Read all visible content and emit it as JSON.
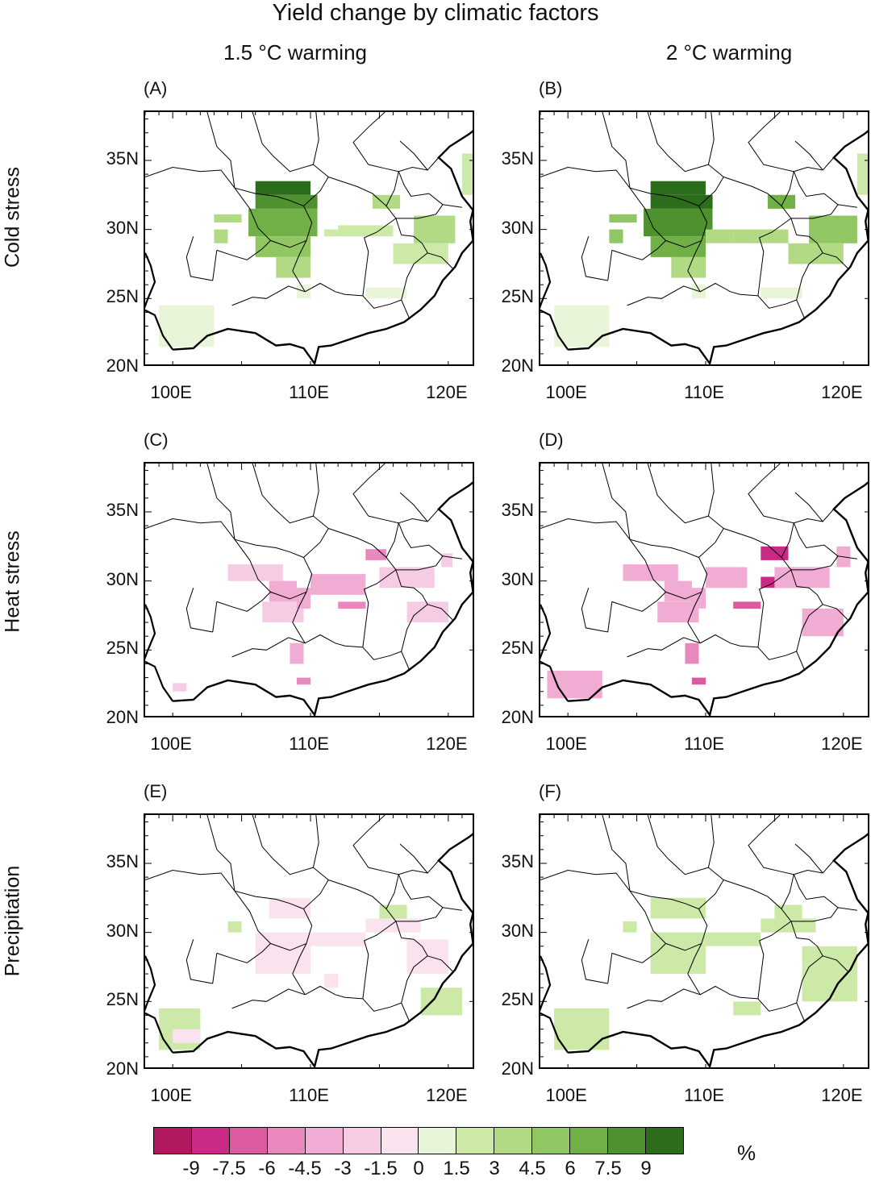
{
  "title": "Yield change by climatic factors",
  "columns": [
    "1.5 °C warming",
    "2 °C warming"
  ],
  "rows": [
    "Cold stress",
    "Heat stress",
    "Precipitation"
  ],
  "panel_labels": [
    "(A)",
    "(B)",
    "(C)",
    "(D)",
    "(E)",
    "(F)"
  ],
  "lat_ticks": [
    "35N",
    "30N",
    "25N",
    "20N"
  ],
  "lon_ticks": [
    "100E",
    "110E",
    "120E"
  ],
  "map_extent": {
    "lon": [
      98,
      122
    ],
    "lat": [
      20,
      38.5
    ]
  },
  "colors": {
    "bins": [
      "#b2185e",
      "#ca2a85",
      "#dc5a9f",
      "#e888bc",
      "#f0acd3",
      "#f6cce4",
      "#fae3ef",
      "#e9f5d8",
      "#cde9a8",
      "#b2da85",
      "#91c763",
      "#70b046",
      "#4d922f",
      "#2c6d1b"
    ],
    "border": "#000000"
  },
  "colorbar": {
    "labels": [
      "-9",
      "-7.5",
      "-6",
      "-4.5",
      "-3",
      "-1.5",
      "0",
      "1.5",
      "3",
      "4.5",
      "6",
      "7.5",
      "9"
    ],
    "unit": "%"
  },
  "regions": {
    "A": [
      [
        103,
        29,
        1,
        1,
        9
      ],
      [
        103,
        30.5,
        2,
        0.6,
        9
      ],
      [
        106,
        32.5,
        4,
        1,
        13
      ],
      [
        106,
        31.5,
        4.5,
        1,
        12
      ],
      [
        105.5,
        29.5,
        5,
        2,
        11
      ],
      [
        106,
        28,
        4,
        1.5,
        10
      ],
      [
        107.5,
        26.5,
        2.5,
        1.5,
        9
      ],
      [
        111,
        29.5,
        1,
        0.5,
        8
      ],
      [
        112,
        29.5,
        4,
        0.8,
        8
      ],
      [
        114.5,
        31.5,
        2,
        1,
        9
      ],
      [
        117.5,
        29,
        3,
        2,
        9
      ],
      [
        116,
        27.5,
        4,
        1.5,
        8
      ],
      [
        121,
        32.5,
        1,
        3,
        8
      ],
      [
        99,
        21.5,
        4,
        3,
        7
      ],
      [
        109,
        25,
        1,
        1,
        7
      ],
      [
        114,
        25,
        3,
        0.8,
        7
      ]
    ],
    "B": [
      [
        103,
        29,
        1,
        1,
        10
      ],
      [
        103,
        30.5,
        2,
        0.6,
        10
      ],
      [
        106,
        32.5,
        4,
        1,
        13
      ],
      [
        106,
        31.5,
        4.5,
        1,
        13
      ],
      [
        105.5,
        29.5,
        5,
        2,
        12
      ],
      [
        106,
        28,
        4,
        1.5,
        11
      ],
      [
        107.5,
        26.5,
        2.5,
        1.5,
        9
      ],
      [
        110,
        29,
        2,
        1,
        9
      ],
      [
        112,
        29,
        4,
        1,
        9
      ],
      [
        114.5,
        31.5,
        2,
        1,
        11
      ],
      [
        117.5,
        29,
        3.5,
        2,
        10
      ],
      [
        116,
        27.5,
        4,
        1.5,
        9
      ],
      [
        121,
        32.5,
        1,
        3,
        8
      ],
      [
        99,
        21.5,
        4,
        3,
        7
      ],
      [
        109,
        25,
        1,
        1,
        7
      ],
      [
        114,
        25,
        3,
        0.8,
        7
      ]
    ],
    "C": [
      [
        104,
        30,
        4,
        1.2,
        5
      ],
      [
        107,
        28.5,
        2,
        1.5,
        4
      ],
      [
        106.5,
        27,
        3,
        1.5,
        5
      ],
      [
        109,
        28,
        1,
        1.5,
        4
      ],
      [
        110,
        29,
        4,
        1.5,
        4
      ],
      [
        112,
        28,
        2,
        0.5,
        3
      ],
      [
        114,
        31.5,
        1.5,
        0.8,
        3
      ],
      [
        115,
        29.5,
        4,
        1.5,
        5
      ],
      [
        117,
        27,
        3,
        1.5,
        5
      ],
      [
        108.5,
        24,
        1,
        1.5,
        4
      ],
      [
        109,
        22.5,
        1,
        0.5,
        3
      ],
      [
        100,
        22,
        1,
        0.6,
        5
      ],
      [
        119.5,
        31,
        0.8,
        1,
        5
      ]
    ],
    "D": [
      [
        104,
        30,
        4,
        1.2,
        4
      ],
      [
        107,
        28.5,
        2,
        1.5,
        4
      ],
      [
        106.5,
        27,
        3,
        1.5,
        4
      ],
      [
        109,
        28,
        1,
        1.5,
        4
      ],
      [
        110,
        29.5,
        3,
        1.5,
        4
      ],
      [
        112,
        28,
        2,
        0.5,
        2
      ],
      [
        114,
        31.5,
        2,
        1,
        1
      ],
      [
        114,
        29.5,
        3,
        0.8,
        1
      ],
      [
        115,
        29.5,
        4,
        1.5,
        4
      ],
      [
        117,
        26,
        3,
        2,
        4
      ],
      [
        108.5,
        24,
        1,
        1.5,
        3
      ],
      [
        109,
        22.5,
        1,
        0.5,
        2
      ],
      [
        98.5,
        21.5,
        4,
        2,
        4
      ],
      [
        119.5,
        31,
        1,
        1.5,
        4
      ]
    ],
    "E": [
      [
        104,
        30,
        1,
        0.8,
        8
      ],
      [
        107,
        31,
        3,
        1.5,
        6
      ],
      [
        106,
        27,
        4,
        3,
        6
      ],
      [
        110,
        29,
        4,
        1,
        6
      ],
      [
        114,
        30,
        4,
        1,
        6
      ],
      [
        117,
        27,
        3,
        2.5,
        6
      ],
      [
        115,
        31,
        2,
        1,
        8
      ],
      [
        99,
        21.5,
        3,
        3,
        8
      ],
      [
        100,
        22,
        2,
        1,
        6
      ],
      [
        118,
        24,
        3,
        2,
        8
      ],
      [
        111,
        26,
        1,
        1,
        6
      ]
    ],
    "F": [
      [
        104,
        30,
        1,
        0.8,
        8
      ],
      [
        106,
        31,
        4,
        1.5,
        8
      ],
      [
        106,
        27,
        4,
        3,
        8
      ],
      [
        110,
        29,
        4,
        1,
        8
      ],
      [
        114,
        30,
        4,
        1,
        8
      ],
      [
        117,
        25,
        4,
        4,
        8
      ],
      [
        99,
        21.5,
        4,
        3,
        8
      ],
      [
        112,
        24,
        2,
        1,
        8
      ],
      [
        115,
        31,
        2,
        1,
        8
      ]
    ]
  }
}
